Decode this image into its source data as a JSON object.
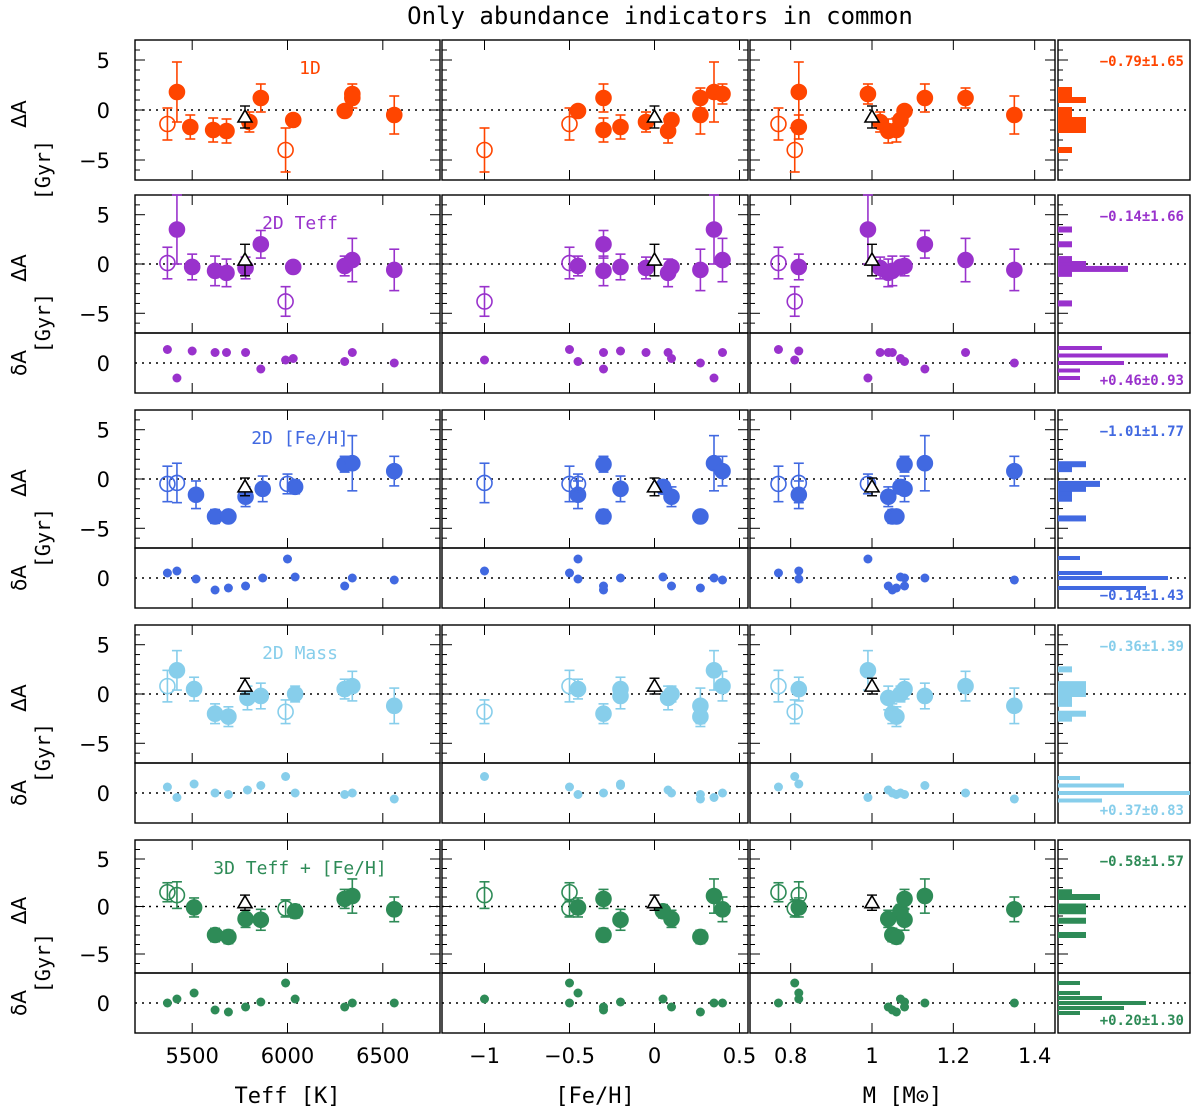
{
  "title": "Only abundance indicators in common",
  "colors": {
    "1D": "#ff4500",
    "2D Teff": "#9932cc",
    "2D [Fe/H]": "#4169e1",
    "2D Mass": "#87ceeb",
    "3D": "#2e8b57",
    "sun": "#000000"
  },
  "labels": {
    "delta_big": "ΔA",
    "delta_small": "δA",
    "gyr": "[Gyr]"
  },
  "chart_data": {
    "type": "scatter",
    "columns": [
      {
        "key": "teff",
        "xlabel": "Teff [K]",
        "ticks": [
          5500,
          6000,
          6500
        ],
        "range": [
          5200,
          6800
        ]
      },
      {
        "key": "feh",
        "xlabel": "[Fe/H]",
        "ticks": [
          -1,
          -0.5,
          0,
          0.5
        ],
        "tick_labels": [
          "−1",
          "−0.5",
          "0",
          "0.5"
        ],
        "range": [
          -1.25,
          0.55
        ]
      },
      {
        "key": "mass",
        "xlabel": "M [M⊙]",
        "ticks": [
          0.8,
          1,
          1.2,
          1.4
        ],
        "tick_labels": [
          "0.8",
          "1",
          "1.2",
          "1.4"
        ],
        "range": [
          0.7,
          1.45
        ]
      }
    ],
    "rows": [
      {
        "label": "1D",
        "color": "1D",
        "stat_big": "−0.79±1.65",
        "stat_small": null,
        "ylim": [
          -7,
          7
        ],
        "points": [
          {
            "teff": 5370,
            "feh": -0.5,
            "mass": 0.77,
            "d": -1.4,
            "err": 1.6,
            "open": true
          },
          {
            "teff": 5420,
            "feh": 0.35,
            "mass": 0.82,
            "d": 1.8,
            "err": 3.0,
            "open": false
          },
          {
            "teff": 5490,
            "feh": -0.2,
            "mass": 0.82,
            "d": -1.7,
            "err": 1.2,
            "open": false
          },
          {
            "teff": 5610,
            "feh": -0.3,
            "mass": 1.06,
            "d": -2.0,
            "err": 1.2,
            "open": false
          },
          {
            "teff": 5680,
            "feh": 0.08,
            "mass": 1.04,
            "d": -2.1,
            "err": 1.2,
            "open": false
          },
          {
            "teff": 5800,
            "feh": -0.05,
            "mass": 1.02,
            "d": -1.2,
            "err": 1.0,
            "open": false
          },
          {
            "teff": 5860,
            "feh": -0.3,
            "mass": 1.13,
            "d": 1.2,
            "err": 1.4,
            "open": false
          },
          {
            "teff": 5990,
            "feh": -1.0,
            "mass": 0.81,
            "d": -4.0,
            "err": 2.2,
            "open": true
          },
          {
            "teff": 6030,
            "feh": 0.1,
            "mass": 1.07,
            "d": -1.0,
            "err": 0.6,
            "open": false
          },
          {
            "teff": 6300,
            "feh": -0.45,
            "mass": 1.08,
            "d": -0.1,
            "err": 0.5,
            "open": false
          },
          {
            "teff": 6340,
            "feh": 0.4,
            "mass": 0.99,
            "d": 1.6,
            "err": 1.0,
            "open": false
          },
          {
            "teff": 6560,
            "feh": 0.27,
            "mass": 1.35,
            "d": -0.5,
            "err": 1.9,
            "open": false
          },
          {
            "teff": 6340,
            "feh": 0.27,
            "mass": 1.23,
            "d": 1.2,
            "err": 1.0,
            "open": false
          }
        ],
        "sun": {
          "d": -0.7,
          "err": 1.1
        }
      },
      {
        "label": "2D Teff",
        "color": "2D Teff",
        "stat_big": "−0.14±1.66",
        "stat_small": "+0.46±0.93",
        "ylim": [
          -7,
          7
        ],
        "ylim_small": [
          -2,
          2
        ],
        "points": [
          {
            "teff": 5370,
            "feh": -0.5,
            "mass": 0.77,
            "d": 0.1,
            "err": 1.6,
            "s": 0.9,
            "open": true
          },
          {
            "teff": 5420,
            "feh": 0.35,
            "mass": 0.99,
            "d": 3.5,
            "err": 3.5,
            "s": -1.0,
            "open": false
          },
          {
            "teff": 5500,
            "feh": -0.2,
            "mass": 0.82,
            "d": -0.3,
            "err": 1.3,
            "s": 0.8,
            "open": false
          },
          {
            "teff": 5620,
            "feh": -0.3,
            "mass": 1.05,
            "d": -0.7,
            "err": 1.5,
            "s": 0.7,
            "open": false
          },
          {
            "teff": 5680,
            "feh": 0.08,
            "mass": 1.04,
            "d": -0.9,
            "err": 1.4,
            "s": 0.7,
            "open": false
          },
          {
            "teff": 5780,
            "feh": -0.05,
            "mass": 1.02,
            "d": -0.4,
            "err": 1.1,
            "s": 0.7,
            "open": false
          },
          {
            "teff": 5860,
            "feh": -0.3,
            "mass": 1.13,
            "d": 2.0,
            "err": 1.4,
            "s": -0.4,
            "open": false
          },
          {
            "teff": 5990,
            "feh": -1.0,
            "mass": 0.81,
            "d": -3.8,
            "err": 1.5,
            "s": 0.2,
            "open": true
          },
          {
            "teff": 6030,
            "feh": 0.1,
            "mass": 1.07,
            "d": -0.3,
            "err": 0.6,
            "s": 0.3,
            "open": false
          },
          {
            "teff": 6300,
            "feh": -0.45,
            "mass": 1.08,
            "d": -0.2,
            "err": 1.0,
            "s": 0.1,
            "open": false
          },
          {
            "teff": 6340,
            "feh": 0.4,
            "mass": 1.23,
            "d": 0.4,
            "err": 2.2,
            "s": 0.7,
            "open": false
          },
          {
            "teff": 6560,
            "feh": 0.27,
            "mass": 1.35,
            "d": -0.6,
            "err": 2.1,
            "s": 0.0,
            "open": false
          }
        ],
        "sun": {
          "d": 0.4,
          "err": 1.6
        }
      },
      {
        "label": "2D [Fe/H]",
        "color": "2D [Fe/H]",
        "stat_big": "−1.01±1.77",
        "stat_small": "−0.14±1.43",
        "ylim": [
          -7,
          7
        ],
        "ylim_small": [
          -3,
          3
        ],
        "points": [
          {
            "teff": 5370,
            "feh": -0.5,
            "mass": 0.77,
            "d": -0.5,
            "err": 1.8,
            "s": 0.5,
            "open": true
          },
          {
            "teff": 5420,
            "feh": -1.0,
            "mass": 0.82,
            "d": -0.4,
            "err": 2.0,
            "s": 0.7,
            "open": true
          },
          {
            "teff": 5520,
            "feh": -0.45,
            "mass": 0.82,
            "d": -1.6,
            "err": 1.4,
            "s": -0.1,
            "open": false
          },
          {
            "teff": 5620,
            "feh": -0.3,
            "mass": 1.05,
            "d": -3.8,
            "err": 0.7,
            "s": -1.2,
            "open": false
          },
          {
            "teff": 5690,
            "feh": 0.27,
            "mass": 1.06,
            "d": -3.8,
            "err": 0.6,
            "s": -1.0,
            "open": false
          },
          {
            "teff": 5780,
            "feh": 0.1,
            "mass": 1.04,
            "d": -1.8,
            "err": 1.0,
            "s": -0.8,
            "open": false
          },
          {
            "teff": 5870,
            "feh": -0.2,
            "mass": 1.08,
            "d": -1.0,
            "err": 1.3,
            "s": 0.0,
            "open": false
          },
          {
            "teff": 6000,
            "feh": -0.45,
            "mass": 0.99,
            "d": -0.5,
            "err": 1.0,
            "s": 1.9,
            "open": true
          },
          {
            "teff": 6040,
            "feh": 0.05,
            "mass": 1.07,
            "d": -0.8,
            "err": 0.7,
            "s": 0.1,
            "open": false
          },
          {
            "teff": 6300,
            "feh": -0.3,
            "mass": 1.08,
            "d": 1.5,
            "err": 0.8,
            "s": -0.8,
            "open": false
          },
          {
            "teff": 6340,
            "feh": 0.35,
            "mass": 1.13,
            "d": 1.6,
            "err": 2.8,
            "s": 0.0,
            "open": false
          },
          {
            "teff": 6560,
            "feh": 0.4,
            "mass": 1.35,
            "d": 0.8,
            "err": 1.5,
            "s": -0.2,
            "open": false
          }
        ],
        "sun": {
          "d": -0.8,
          "err": 0.9
        }
      },
      {
        "label": "2D Mass",
        "color": "2D Mass",
        "stat_big": "−0.36±1.39",
        "stat_small": "+0.37±0.83",
        "ylim": [
          -7,
          7
        ],
        "ylim_small": [
          -2,
          2
        ],
        "points": [
          {
            "teff": 5370,
            "feh": -0.5,
            "mass": 0.77,
            "d": 0.8,
            "err": 1.6,
            "s": 0.4,
            "open": true
          },
          {
            "teff": 5420,
            "feh": 0.35,
            "mass": 0.99,
            "d": 2.4,
            "err": 2.0,
            "s": -0.3,
            "open": false
          },
          {
            "teff": 5510,
            "feh": -0.2,
            "mass": 0.82,
            "d": 0.5,
            "err": 1.2,
            "s": 0.6,
            "open": false
          },
          {
            "teff": 5620,
            "feh": -0.3,
            "mass": 1.05,
            "d": -2.0,
            "err": 1.0,
            "s": 0.0,
            "open": false
          },
          {
            "teff": 5690,
            "feh": 0.27,
            "mass": 1.06,
            "d": -2.3,
            "err": 1.0,
            "s": -0.1,
            "open": false
          },
          {
            "teff": 5790,
            "feh": 0.08,
            "mass": 1.04,
            "d": -0.4,
            "err": 1.2,
            "s": 0.2,
            "open": false
          },
          {
            "teff": 5860,
            "feh": -0.2,
            "mass": 1.13,
            "d": -0.2,
            "err": 1.3,
            "s": 0.5,
            "open": false
          },
          {
            "teff": 5990,
            "feh": -1.0,
            "mass": 0.81,
            "d": -1.8,
            "err": 1.2,
            "s": 1.1,
            "open": true
          },
          {
            "teff": 6040,
            "feh": 0.1,
            "mass": 1.07,
            "d": 0.0,
            "err": 0.8,
            "s": 0.0,
            "open": false
          },
          {
            "teff": 6300,
            "feh": -0.45,
            "mass": 1.08,
            "d": 0.5,
            "err": 1.0,
            "s": -0.1,
            "open": false
          },
          {
            "teff": 6340,
            "feh": 0.4,
            "mass": 1.23,
            "d": 0.8,
            "err": 1.5,
            "s": 0.0,
            "open": false
          },
          {
            "teff": 6560,
            "feh": 0.27,
            "mass": 1.35,
            "d": -1.2,
            "err": 1.8,
            "s": -0.4,
            "open": false
          }
        ],
        "sun": {
          "d": 0.8,
          "err": 0.8
        }
      },
      {
        "label": "3D Teff + [Fe/H]",
        "color": "3D",
        "stat_big": "−0.58±1.57",
        "stat_small": "+0.20±1.30",
        "ylim": [
          -7,
          7
        ],
        "ylim_small": [
          -3,
          3
        ],
        "points": [
          {
            "teff": 5370,
            "feh": -0.5,
            "mass": 0.77,
            "d": 1.5,
            "err": 1.0,
            "s": 0.0,
            "open": true
          },
          {
            "teff": 5420,
            "feh": -1.0,
            "mass": 0.82,
            "d": 1.2,
            "err": 1.4,
            "s": 0.4,
            "open": true
          },
          {
            "teff": 5510,
            "feh": -0.45,
            "mass": 0.82,
            "d": -0.1,
            "err": 1.0,
            "s": 1.0,
            "open": false
          },
          {
            "teff": 5620,
            "feh": -0.3,
            "mass": 1.05,
            "d": -3.0,
            "err": 0.7,
            "s": -0.7,
            "open": false
          },
          {
            "teff": 5690,
            "feh": 0.27,
            "mass": 1.06,
            "d": -3.2,
            "err": 0.7,
            "s": -0.9,
            "open": false
          },
          {
            "teff": 5780,
            "feh": 0.1,
            "mass": 1.04,
            "d": -1.3,
            "err": 0.9,
            "s": -0.4,
            "open": false
          },
          {
            "teff": 5860,
            "feh": -0.2,
            "mass": 1.08,
            "d": -1.4,
            "err": 1.1,
            "s": 0.1,
            "open": false
          },
          {
            "teff": 5990,
            "feh": -0.5,
            "mass": 0.81,
            "d": -0.2,
            "err": 0.9,
            "s": 2.0,
            "open": true
          },
          {
            "teff": 6040,
            "feh": 0.05,
            "mass": 1.07,
            "d": -0.5,
            "err": 0.7,
            "s": 0.4,
            "open": false
          },
          {
            "teff": 6300,
            "feh": -0.3,
            "mass": 1.08,
            "d": 0.8,
            "err": 1.0,
            "s": -0.4,
            "open": false
          },
          {
            "teff": 6340,
            "feh": 0.35,
            "mass": 1.13,
            "d": 1.1,
            "err": 1.8,
            "s": 0.0,
            "open": false
          },
          {
            "teff": 6560,
            "feh": 0.4,
            "mass": 1.35,
            "d": -0.3,
            "err": 1.3,
            "s": 0.0,
            "open": false
          }
        ],
        "sun": {
          "d": 0.4,
          "err": 0.8
        }
      }
    ]
  }
}
